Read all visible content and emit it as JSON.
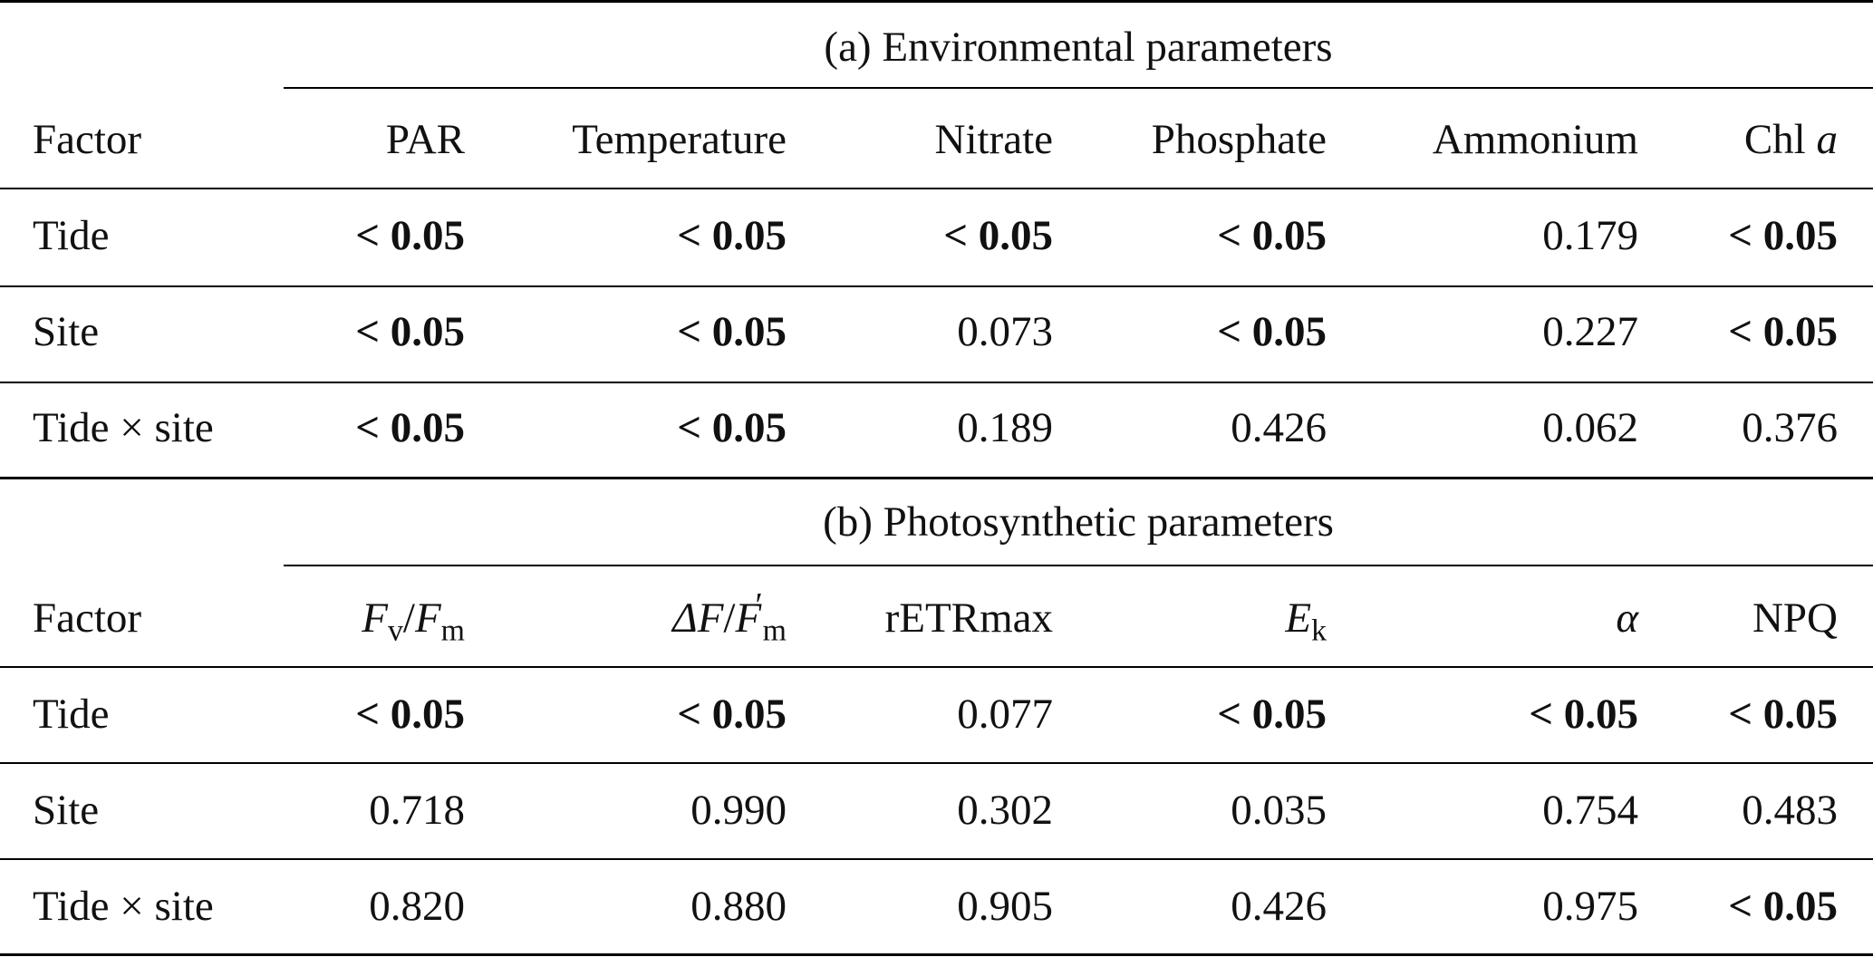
{
  "panel_a": {
    "title": "(a) Environmental parameters",
    "header": {
      "factor": "Factor",
      "cols": [
        "PAR",
        "Temperature",
        "Nitrate",
        "Phosphate",
        "Ammonium",
        "Chl",
        "a"
      ]
    },
    "rows": [
      {
        "factor": "Tide",
        "values": [
          "< 0.05",
          "< 0.05",
          "< 0.05",
          "< 0.05",
          "0.179",
          "< 0.05"
        ]
      },
      {
        "factor": "Site",
        "values": [
          "< 0.05",
          "< 0.05",
          "0.073",
          "< 0.05",
          "0.227",
          "< 0.05"
        ]
      },
      {
        "factor": "Tide × site",
        "values": [
          "< 0.05",
          "< 0.05",
          "0.189",
          "0.426",
          "0.062",
          "0.376"
        ]
      }
    ]
  },
  "panel_b": {
    "title": "(b) Photosynthetic parameters",
    "header": {
      "factor": "Factor",
      "fv": "F",
      "fv_sub": "v",
      "slash": "/",
      "fm": "F",
      "fm_sub": "m",
      "delta": "ΔF",
      "delta_slash": "/",
      "fmp": "F",
      "fmp_prime": "′",
      "fmp_sub": "m",
      "retr": "rETRmax",
      "ek": "E",
      "ek_sub": "k",
      "alpha": "α",
      "npq": "NPQ"
    },
    "rows": [
      {
        "factor": "Tide",
        "values": [
          "< 0.05",
          "< 0.05",
          "0.077",
          "< 0.05",
          "< 0.05",
          "< 0.05"
        ]
      },
      {
        "factor": "Site",
        "values": [
          "0.718",
          "0.990",
          "0.302",
          "0.035",
          "0.754",
          "0.483"
        ]
      },
      {
        "factor": "Tide × site",
        "values": [
          "0.820",
          "0.880",
          "0.905",
          "0.426",
          "0.975",
          "< 0.05"
        ]
      }
    ]
  }
}
